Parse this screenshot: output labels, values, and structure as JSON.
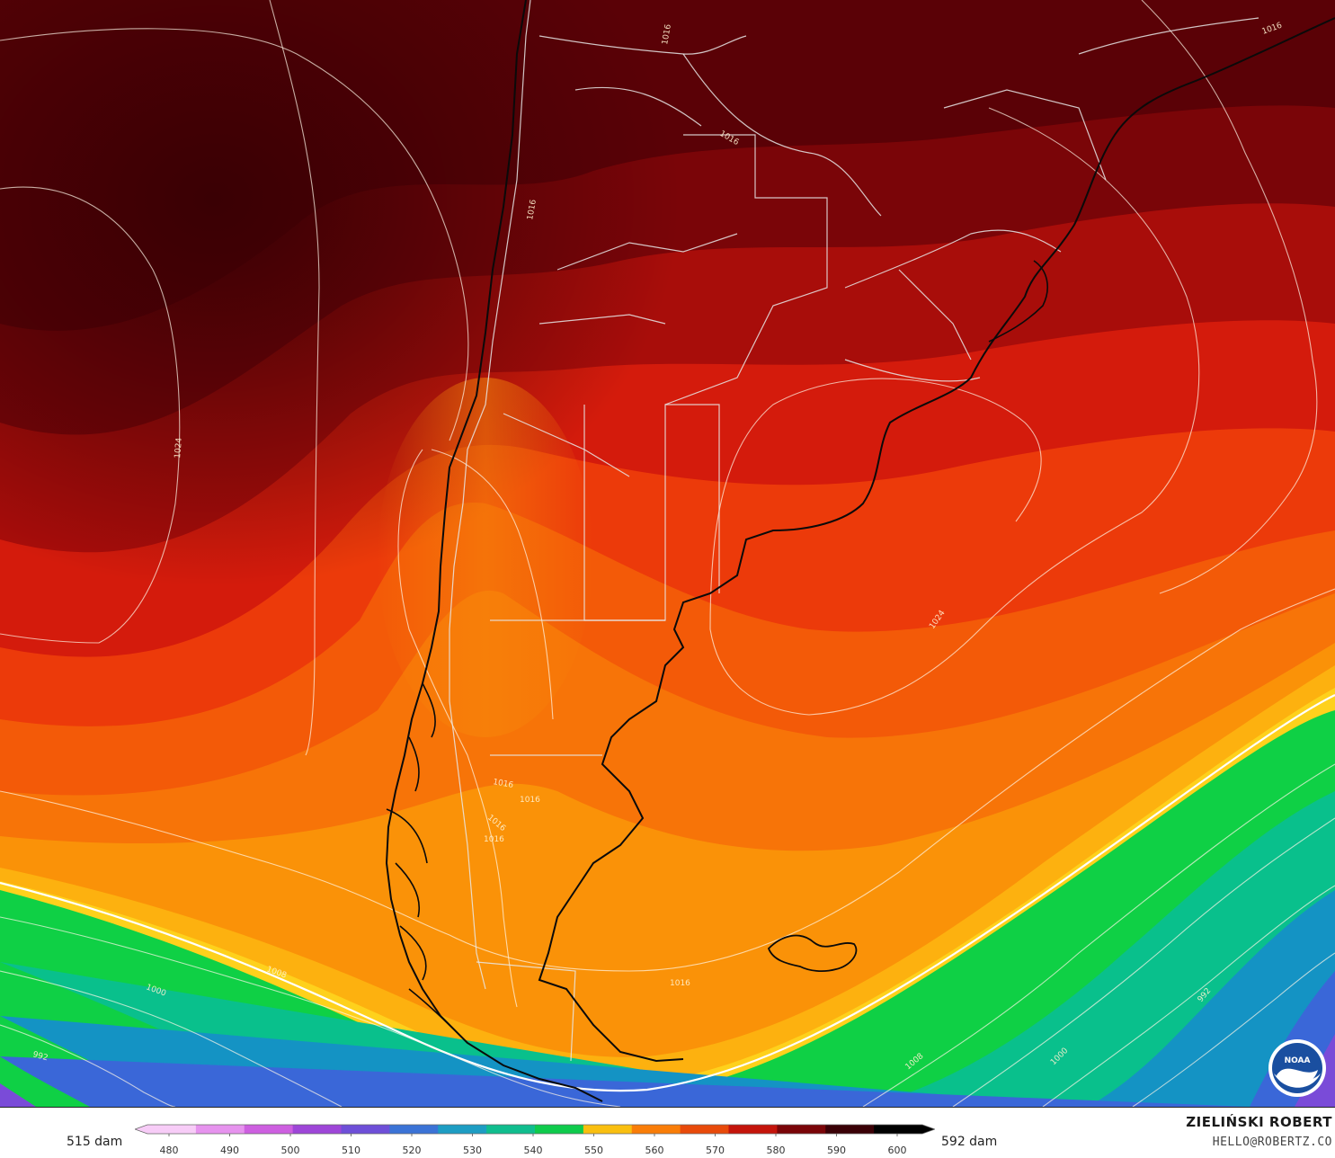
{
  "map": {
    "agency_logo": "noaa-logo",
    "logo_text": "NOAA",
    "isobar_labels": [
      {
        "text": "1016"
      },
      {
        "text": "1016"
      },
      {
        "text": "1016"
      },
      {
        "text": "1024"
      },
      {
        "text": "1024"
      },
      {
        "text": "1016"
      },
      {
        "text": "1016"
      },
      {
        "text": "1016"
      },
      {
        "text": "1016"
      },
      {
        "text": "1016"
      },
      {
        "text": "1008"
      },
      {
        "text": "1000"
      },
      {
        "text": "992"
      },
      {
        "text": "1016"
      },
      {
        "text": "1008"
      },
      {
        "text": "1000"
      },
      {
        "text": "992"
      }
    ],
    "height_palette": [
      "#3e0006",
      "#5a0106",
      "#7a0508",
      "#a80d0a",
      "#d41b0c",
      "#ec3a0a",
      "#f35a08",
      "#f77408",
      "#fa9208",
      "#fdb10f",
      "#fed11c",
      "#0fd045",
      "#09c08c",
      "#1493c4",
      "#3a67d8",
      "#7a4bd8"
    ]
  },
  "legend": {
    "min_label": "515 dam",
    "max_label": "592 dam",
    "ticks": [
      "480",
      "490",
      "500",
      "510",
      "520",
      "530",
      "540",
      "550",
      "560",
      "570",
      "580",
      "590",
      "600"
    ],
    "colors": [
      "#f7ccf7",
      "#e693ee",
      "#cd5fe0",
      "#9e46d8",
      "#6e4fd8",
      "#3b73d6",
      "#1d9dc3",
      "#10bd8e",
      "#0fcb4c",
      "#f9bf10",
      "#f97d08",
      "#e84a0a",
      "#c4140b",
      "#7a0508",
      "#3a0006",
      "#000000"
    ]
  },
  "credits": {
    "author": "ZIELIŃSKI ROBERT",
    "email": "HELLO@ROBERTZ.CO"
  }
}
